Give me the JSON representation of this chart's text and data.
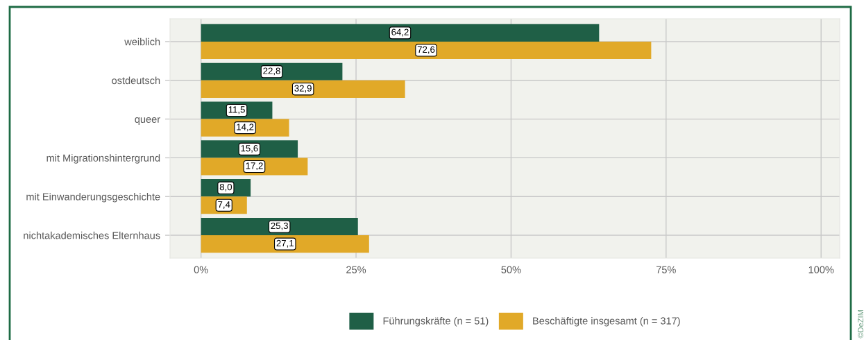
{
  "chart_data": {
    "type": "bar",
    "orientation": "horizontal",
    "categories": [
      "weiblich",
      "ostdeutsch",
      "queer",
      "mit Migrationshintergrund",
      "mit Einwanderungsgeschichte",
      "nichtakademisches Elternhaus"
    ],
    "series": [
      {
        "name": "Führungskräfte (n = 51)",
        "color": "#1f5f46",
        "values": [
          64.2,
          22.8,
          11.5,
          15.6,
          8.0,
          25.3
        ],
        "value_labels": [
          "64,2",
          "22,8",
          "11,5",
          "15,6",
          "8,0",
          "25,3"
        ]
      },
      {
        "name": "Beschäftigte insgesamt (n = 317)",
        "color": "#e1a928",
        "values": [
          72.6,
          32.9,
          14.2,
          17.2,
          7.4,
          27.1
        ],
        "value_labels": [
          "72,6",
          "32,9",
          "14,2",
          "17,2",
          "7,4",
          "27,1"
        ]
      }
    ],
    "xlim": [
      -5,
      103
    ],
    "xticks": [
      {
        "value": 0,
        "label": "0%"
      },
      {
        "value": 25,
        "label": "25%"
      },
      {
        "value": 50,
        "label": "50%"
      },
      {
        "value": 75,
        "label": "75%"
      },
      {
        "value": 100,
        "label": "100%"
      }
    ],
    "grid": true,
    "legend": "bottom",
    "annotations": [
      "©DeZIM"
    ]
  }
}
